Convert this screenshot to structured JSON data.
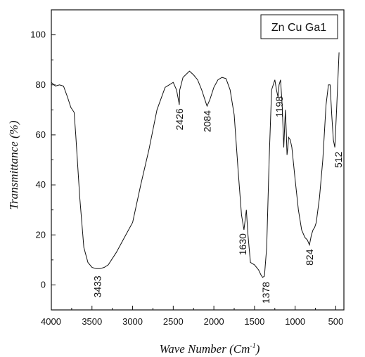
{
  "chart_data": {
    "type": "line",
    "title": "",
    "xlabel": "Wave Number (Cm",
    "xlabel_sup": "-1",
    "xlabel_close": ")",
    "ylabel": "Transmittance (%)",
    "xlim": [
      4000,
      400
    ],
    "ylim": [
      -10,
      110
    ],
    "x_ticks": [
      4000,
      3500,
      3000,
      2500,
      2000,
      1500,
      1000,
      500
    ],
    "y_ticks": [
      0,
      20,
      40,
      60,
      80,
      100
    ],
    "legend": {
      "label": "Zn Cu Ga1",
      "position": "top-right"
    },
    "series": [
      {
        "name": "Zn Cu Ga1",
        "x": [
          4000,
          3950,
          3900,
          3850,
          3800,
          3760,
          3720,
          3700,
          3650,
          3600,
          3550,
          3500,
          3450,
          3400,
          3350,
          3300,
          3200,
          3100,
          3000,
          2900,
          2800,
          2700,
          2600,
          2500,
          2460,
          2430,
          2426,
          2420,
          2380,
          2300,
          2250,
          2200,
          2150,
          2100,
          2084,
          2050,
          2000,
          1950,
          1900,
          1850,
          1800,
          1750,
          1700,
          1660,
          1630,
          1600,
          1580,
          1550,
          1500,
          1450,
          1420,
          1400,
          1378,
          1350,
          1320,
          1290,
          1250,
          1230,
          1210,
          1198,
          1180,
          1160,
          1140,
          1120,
          1110,
          1100,
          1090,
          1080,
          1060,
          1040,
          1000,
          960,
          920,
          880,
          850,
          824,
          800,
          780,
          760,
          740,
          700,
          660,
          620,
          590,
          570,
          550,
          530,
          512,
          490,
          470,
          460
        ],
        "y": [
          81,
          79.5,
          80,
          79.5,
          75,
          71,
          69,
          60,
          35,
          15,
          9,
          7,
          6.5,
          6.5,
          7,
          8,
          13,
          19,
          25,
          40,
          54,
          70,
          79,
          81,
          78,
          73,
          72,
          78,
          83,
          85.5,
          84,
          82,
          78,
          73,
          71.5,
          74,
          79,
          82,
          83,
          82.5,
          78,
          68,
          45,
          28,
          22,
          30,
          20,
          9,
          8,
          6,
          4,
          3,
          3.5,
          15,
          50,
          78,
          82,
          78,
          75,
          80,
          82,
          72,
          55,
          70,
          62,
          52,
          55,
          59,
          58,
          55,
          42,
          30,
          22,
          19,
          18,
          16,
          20,
          22,
          23,
          25,
          35,
          50,
          72,
          80,
          80,
          68,
          58,
          55,
          70,
          85,
          93
        ]
      }
    ],
    "annotations": [
      {
        "text": "3433",
        "x": 3433,
        "y": 6.5
      },
      {
        "text": "2426",
        "x": 2426,
        "y": 72
      },
      {
        "text": "2084",
        "x": 2084,
        "y": 71.5
      },
      {
        "text": "1630",
        "x": 1630,
        "y": 22
      },
      {
        "text": "1378",
        "x": 1378,
        "y": 3.5
      },
      {
        "text": "1198",
        "x": 1198,
        "y": 80
      },
      {
        "text": "824",
        "x": 824,
        "y": 16
      },
      {
        "text": "512",
        "x": 512,
        "y": 55
      }
    ]
  }
}
